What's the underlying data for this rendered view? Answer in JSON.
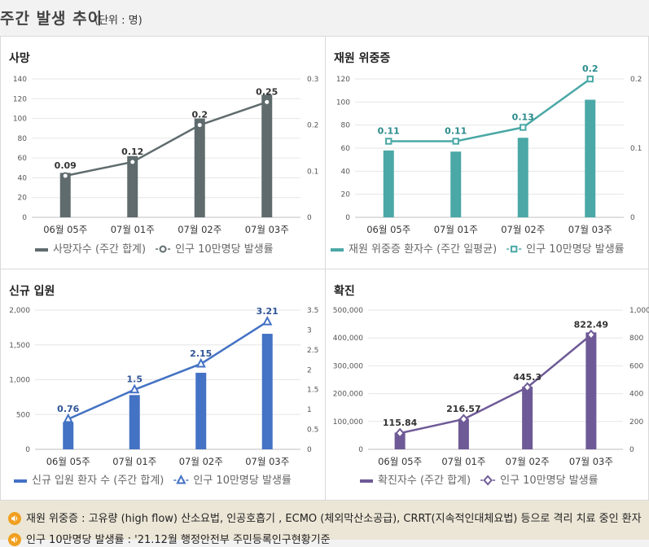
{
  "header": {
    "title": "주간 발생 추이",
    "unit": "(단위 : 명)"
  },
  "chart_data": [
    {
      "type": "bar",
      "title": "사망",
      "categories": [
        "06월 05주",
        "07월 01주",
        "07월 02주",
        "07월 03주"
      ],
      "series": [
        {
          "name": "사망자수 (주간 합계)",
          "kind": "bar",
          "axis": "left",
          "values": [
            45,
            62,
            100,
            124
          ]
        },
        {
          "name": "인구 10만명당 발생률",
          "kind": "line",
          "axis": "right",
          "marker": "circle",
          "values": [
            0.09,
            0.12,
            0.2,
            0.25
          ],
          "labels": [
            "0.09",
            "0.12",
            "0.2",
            "0.25"
          ]
        }
      ],
      "left_axis": {
        "min": 0,
        "max": 140,
        "ticks": [
          "0",
          "20",
          "40",
          "60",
          "80",
          "100",
          "120",
          "140"
        ]
      },
      "right_axis": {
        "min": 0,
        "max": 0.3,
        "ticks": [
          "0",
          "0.1",
          "0.2",
          "0.3"
        ]
      },
      "bar_color": "#5f6b6d",
      "line_color": "#5f6b6d",
      "label_color": "#333333"
    },
    {
      "type": "bar",
      "title": "재원 위중증",
      "categories": [
        "06월 05주",
        "07월 01주",
        "07월 02주",
        "07월 03주"
      ],
      "series": [
        {
          "name": "재원 위중증 환자수 (주간 일평균)",
          "kind": "bar",
          "axis": "left",
          "values": [
            58,
            57,
            69,
            102
          ]
        },
        {
          "name": "인구 10만명당 발생률",
          "kind": "line",
          "axis": "right",
          "marker": "square",
          "values": [
            0.11,
            0.11,
            0.13,
            0.2
          ],
          "labels": [
            "0.11",
            "0.11",
            "0.13",
            "0.2"
          ]
        }
      ],
      "left_axis": {
        "min": 0,
        "max": 120,
        "ticks": [
          "0",
          "20",
          "40",
          "60",
          "80",
          "100",
          "120"
        ]
      },
      "right_axis": {
        "min": 0,
        "max": 0.2,
        "ticks": [
          "0",
          "0.1",
          "0.2"
        ]
      },
      "bar_color": "#4aa8a6",
      "line_color": "#4aa8a6",
      "label_color": "#2a8a8c"
    },
    {
      "type": "bar",
      "title": "신규 입원",
      "categories": [
        "06월 05주",
        "07월 01주",
        "07월 02주",
        "07월 03주"
      ],
      "series": [
        {
          "name": "신규 입원 환자 수 (주간 합계)",
          "kind": "bar",
          "axis": "left",
          "values": [
            390,
            780,
            1100,
            1660
          ]
        },
        {
          "name": "인구 10만명당 발생률",
          "kind": "line",
          "axis": "right",
          "marker": "triangle",
          "values": [
            0.76,
            1.5,
            2.15,
            3.21
          ],
          "labels": [
            "0.76",
            "1.5",
            "2.15",
            "3.21"
          ]
        }
      ],
      "left_axis": {
        "min": 0,
        "max": 2000,
        "ticks": [
          "0",
          "500",
          "1,000",
          "1,500",
          "2,000"
        ]
      },
      "right_axis": {
        "min": 0,
        "max": 3.5,
        "ticks": [
          "0",
          "0.5",
          "1",
          "1.5",
          "2",
          "2.5",
          "3",
          "3.5"
        ]
      },
      "bar_color": "#4472c4",
      "line_color": "#4472c4",
      "label_color": "#2f5597"
    },
    {
      "type": "bar",
      "title": "확진",
      "categories": [
        "06월 05주",
        "07월 01주",
        "07월 02주",
        "07월 03주"
      ],
      "series": [
        {
          "name": "확진자수 (주간 합계)",
          "kind": "bar",
          "axis": "left",
          "values": [
            60000,
            110000,
            225000,
            420000
          ]
        },
        {
          "name": "인구 10만명당 발생률",
          "kind": "line",
          "axis": "right",
          "marker": "diamond",
          "values": [
            115.84,
            216.57,
            445.3,
            822.49
          ],
          "labels": [
            "115.84",
            "216.57",
            "445.3",
            "822.49"
          ]
        }
      ],
      "left_axis": {
        "min": 0,
        "max": 500000,
        "ticks": [
          "0",
          "100,000",
          "200,000",
          "300,000",
          "400,000",
          "500,000"
        ]
      },
      "right_axis": {
        "min": 0,
        "max": 1000,
        "ticks": [
          "0",
          "200",
          "400",
          "600",
          "800",
          "1,000"
        ]
      },
      "bar_color": "#6e5a96",
      "line_color": "#6e5a96",
      "label_color": "#333333"
    }
  ],
  "notes": [
    "재원 위중증 : 고유량 (high flow) 산소요법, 인공호흡기 , ECMO (체외막산소공급), CRRT(지속적인대체요법) 등으로 격리 치료 중인 환자",
    "인구 10만명당 발생률 : '21.12월 행정안전부 주민등록인구현황기준"
  ]
}
